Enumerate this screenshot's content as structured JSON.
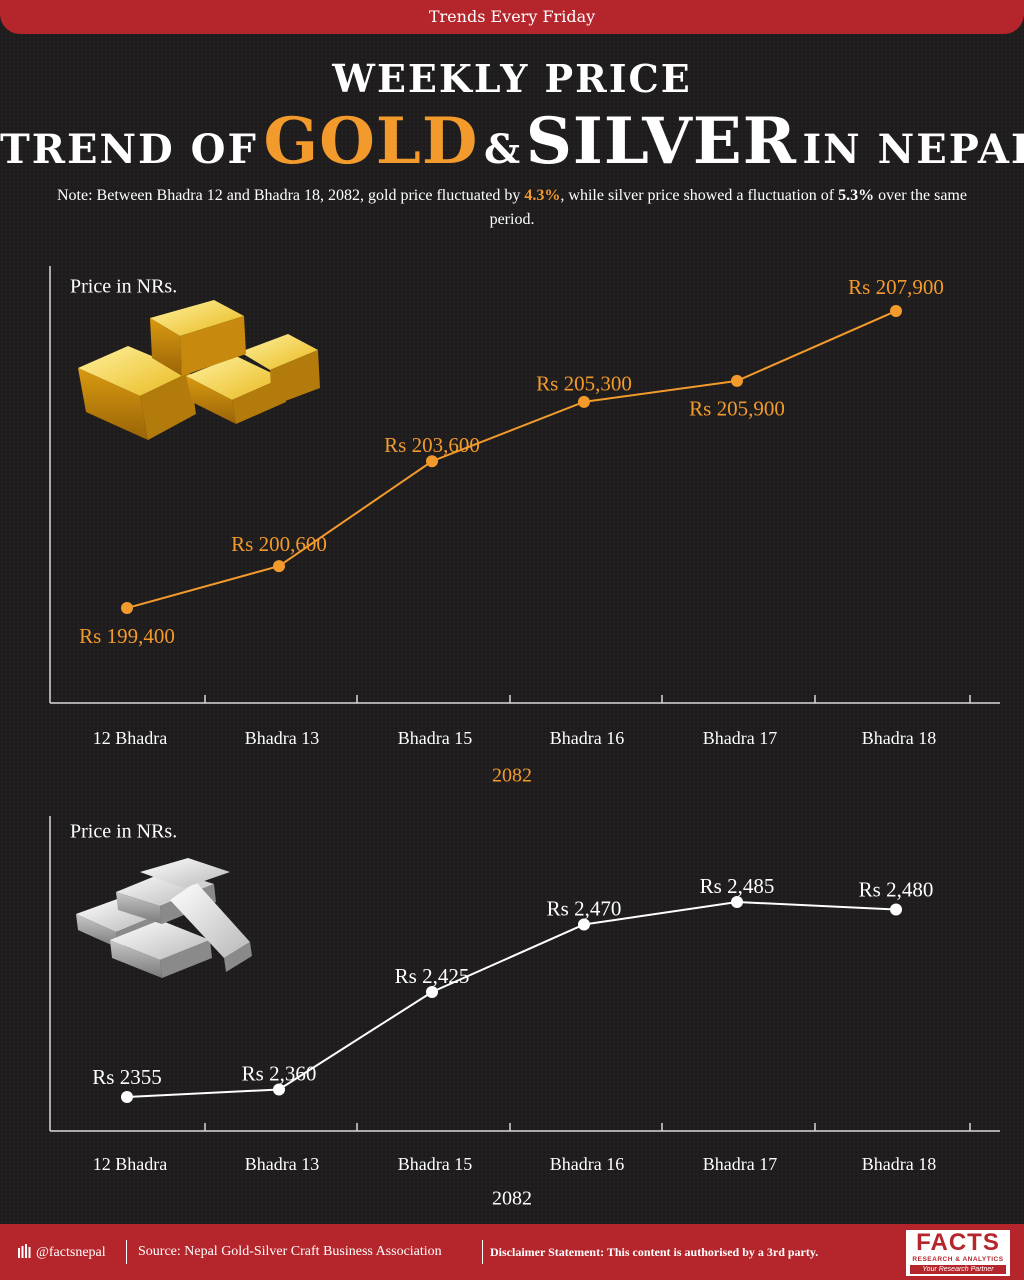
{
  "banner": "Trends Every Friday",
  "title": {
    "line1": "WEEKLY PRICE",
    "prefix": "TREND OF",
    "gold": "GOLD",
    "amp": "&",
    "silver": "SILVER",
    "suffix": "IN NEPAL"
  },
  "note": {
    "part1": "Note: Between Bhadra 12 and Bhadra 18, 2082, gold price fluctuated by ",
    "gold_pct": "4.3%",
    "part2": ", while silver price showed a fluctuation of ",
    "silver_pct": "5.3%",
    "part3": " over the same period."
  },
  "chart_data": [
    {
      "type": "line",
      "name": "gold",
      "ylabel": "Price in NRs.",
      "xlabel": "2082",
      "categories": [
        "12 Bhadra",
        "Bhadra 13",
        "Bhadra 15",
        "Bhadra 16",
        "Bhadra 17",
        "Bhadra 18"
      ],
      "values": [
        199400,
        200600,
        203600,
        205300,
        205900,
        207900
      ],
      "labels": [
        "Rs 199,400",
        "Rs 200,600",
        "Rs 203,600",
        "Rs 205,300",
        "Rs 205,900",
        "Rs 207,900"
      ],
      "color": "#f39a2d",
      "grid": false
    },
    {
      "type": "line",
      "name": "silver",
      "ylabel": "Price in NRs.",
      "xlabel": "2082",
      "categories": [
        "12 Bhadra",
        "Bhadra 13",
        "Bhadra 15",
        "Bhadra 16",
        "Bhadra 17",
        "Bhadra 18"
      ],
      "values": [
        2355,
        2360,
        2425,
        2470,
        2485,
        2480
      ],
      "labels": [
        "Rs 2355",
        "Rs 2,360",
        "Rs 2,425",
        "Rs 2,470",
        "Rs 2,485",
        "Rs 2,480"
      ],
      "color": "#ffffff",
      "grid": false
    }
  ],
  "footer": {
    "handle": "@factsnepal",
    "source": "Source: Nepal Gold-Silver Craft Business Association",
    "disclaimer": "Disclaimer Statement: This content is authorised by a 3rd party."
  },
  "logo": {
    "name": "FACTS",
    "sub": "RESEARCH & ANALYTICS",
    "tag": "Your Research Partner"
  },
  "colors": {
    "accent_red": "#b5262c",
    "gold": "#f39a2d",
    "background": "#1e1c1c"
  },
  "icons": [
    "gold-bars-icon",
    "silver-bars-icon",
    "bar-chart-icon"
  ]
}
